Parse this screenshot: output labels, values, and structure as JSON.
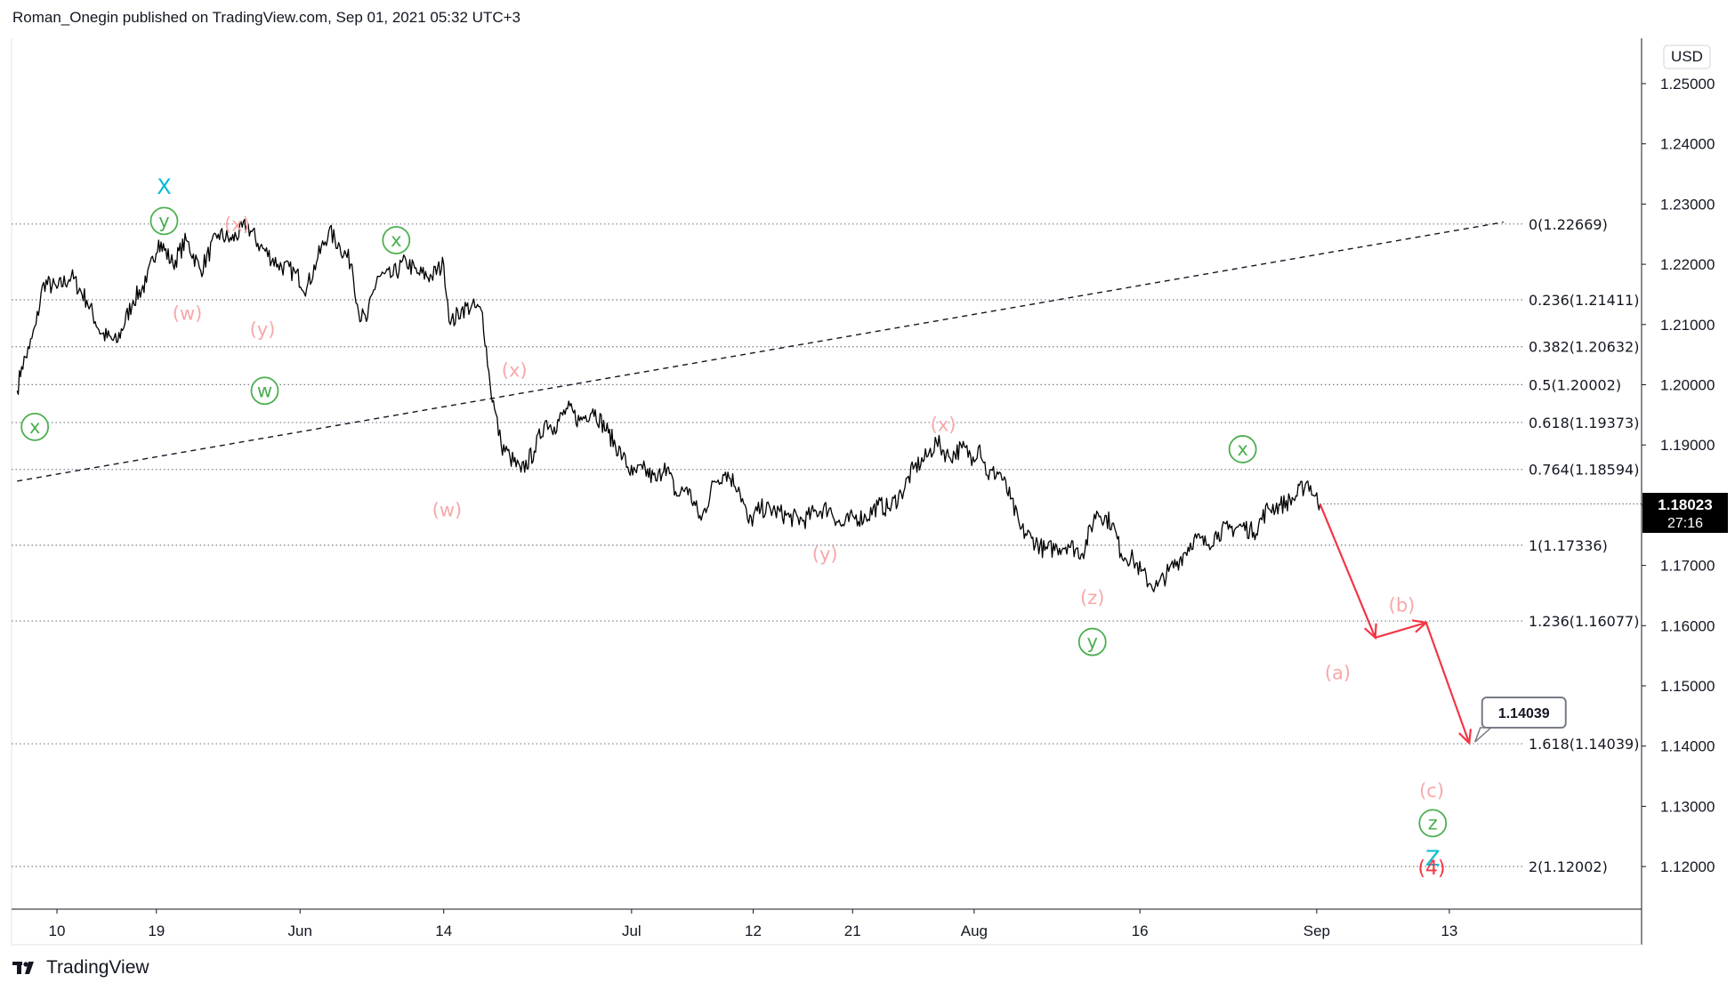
{
  "header": {
    "publisher": "Roman_Onegin published on TradingView.com, Sep 01, 2021 05:32 UTC+3"
  },
  "footer": {
    "brand": "TradingView",
    "logo_icon": "tradingview-logo-icon"
  },
  "chart_data": {
    "type": "line",
    "symbol_currency": "USD",
    "y_range": [
      1.1145,
      1.255
    ],
    "y_ticks": [
      "1.25000",
      "1.24000",
      "1.23000",
      "1.22000",
      "1.21000",
      "1.20000",
      "1.19000",
      "1.18000",
      "1.17000",
      "1.16000",
      "1.15000",
      "1.14000",
      "1.13000",
      "1.12000"
    ],
    "x_ticks": [
      {
        "label": "10",
        "day": 0
      },
      {
        "label": "19",
        "day": 9
      },
      {
        "label": "Jun",
        "day": 22
      },
      {
        "label": "14",
        "day": 35
      },
      {
        "label": "Jul",
        "day": 52
      },
      {
        "label": "12",
        "day": 63
      },
      {
        "label": "21",
        "day": 72
      },
      {
        "label": "Aug",
        "day": 83
      },
      {
        "label": "16",
        "day": 98
      },
      {
        "label": "Sep",
        "day": 114
      },
      {
        "label": "13",
        "day": 126
      }
    ],
    "last_price": "1.18023",
    "countdown": "27:16",
    "price_path": [
      {
        "day": -3.6,
        "price": 1.199
      },
      {
        "day": -3.2,
        "price": 1.203
      },
      {
        "day": -2.5,
        "price": 1.206
      },
      {
        "day": -1.9,
        "price": 1.21
      },
      {
        "day": -1.2,
        "price": 1.217
      },
      {
        "day": 0.0,
        "price": 1.216
      },
      {
        "day": 1.3,
        "price": 1.218
      },
      {
        "day": 2.7,
        "price": 1.214
      },
      {
        "day": 4.0,
        "price": 1.2085
      },
      {
        "day": 5.4,
        "price": 1.207
      },
      {
        "day": 6.9,
        "price": 1.214
      },
      {
        "day": 8.1,
        "price": 1.217
      },
      {
        "day": 9.2,
        "price": 1.224
      },
      {
        "day": 10.5,
        "price": 1.22
      },
      {
        "day": 11.7,
        "price": 1.224
      },
      {
        "day": 13.0,
        "price": 1.219
      },
      {
        "day": 14.6,
        "price": 1.225
      },
      {
        "day": 15.8,
        "price": 1.224
      },
      {
        "day": 17.2,
        "price": 1.2265
      },
      {
        "day": 18.4,
        "price": 1.223
      },
      {
        "day": 20.0,
        "price": 1.22
      },
      {
        "day": 21.6,
        "price": 1.2185
      },
      {
        "day": 22.6,
        "price": 1.216
      },
      {
        "day": 23.6,
        "price": 1.221
      },
      {
        "day": 24.6,
        "price": 1.2255
      },
      {
        "day": 25.6,
        "price": 1.223
      },
      {
        "day": 26.7,
        "price": 1.22
      },
      {
        "day": 27.3,
        "price": 1.212
      },
      {
        "day": 28.0,
        "price": 1.2105
      },
      {
        "day": 29.0,
        "price": 1.218
      },
      {
        "day": 30.3,
        "price": 1.218
      },
      {
        "day": 31.6,
        "price": 1.2205
      },
      {
        "day": 32.6,
        "price": 1.2185
      },
      {
        "day": 33.9,
        "price": 1.218
      },
      {
        "day": 35.0,
        "price": 1.22
      },
      {
        "day": 35.6,
        "price": 1.21
      },
      {
        "day": 36.6,
        "price": 1.2125
      },
      {
        "day": 37.5,
        "price": 1.213
      },
      {
        "day": 38.5,
        "price": 1.212
      },
      {
        "day": 39.2,
        "price": 1.2
      },
      {
        "day": 39.6,
        "price": 1.196
      },
      {
        "day": 40.2,
        "price": 1.19
      },
      {
        "day": 41.0,
        "price": 1.188
      },
      {
        "day": 42.0,
        "price": 1.1855
      },
      {
        "day": 43.2,
        "price": 1.189
      },
      {
        "day": 44.2,
        "price": 1.194
      },
      {
        "day": 45.0,
        "price": 1.193
      },
      {
        "day": 46.2,
        "price": 1.196
      },
      {
        "day": 47.3,
        "price": 1.194
      },
      {
        "day": 48.5,
        "price": 1.196
      },
      {
        "day": 49.9,
        "price": 1.192
      },
      {
        "day": 51.2,
        "price": 1.188
      },
      {
        "day": 52.1,
        "price": 1.185
      },
      {
        "day": 53.0,
        "price": 1.186
      },
      {
        "day": 54.3,
        "price": 1.184
      },
      {
        "day": 55.0,
        "price": 1.187
      },
      {
        "day": 56.1,
        "price": 1.1815
      },
      {
        "day": 57.0,
        "price": 1.183
      },
      {
        "day": 58.3,
        "price": 1.1775
      },
      {
        "day": 59.5,
        "price": 1.184
      },
      {
        "day": 60.5,
        "price": 1.1855
      },
      {
        "day": 61.7,
        "price": 1.183
      },
      {
        "day": 62.6,
        "price": 1.177
      },
      {
        "day": 63.7,
        "price": 1.1795
      },
      {
        "day": 65.0,
        "price": 1.179
      },
      {
        "day": 66.3,
        "price": 1.178
      },
      {
        "day": 67.6,
        "price": 1.1775
      },
      {
        "day": 68.7,
        "price": 1.179
      },
      {
        "day": 69.9,
        "price": 1.1795
      },
      {
        "day": 71.0,
        "price": 1.1765
      },
      {
        "day": 72.1,
        "price": 1.178
      },
      {
        "day": 73.2,
        "price": 1.178
      },
      {
        "day": 74.3,
        "price": 1.18
      },
      {
        "day": 75.3,
        "price": 1.1795
      },
      {
        "day": 76.4,
        "price": 1.182
      },
      {
        "day": 77.5,
        "price": 1.186
      },
      {
        "day": 78.7,
        "price": 1.188
      },
      {
        "day": 79.6,
        "price": 1.1905
      },
      {
        "day": 80.7,
        "price": 1.188
      },
      {
        "day": 81.9,
        "price": 1.1895
      },
      {
        "day": 82.9,
        "price": 1.188
      },
      {
        "day": 83.5,
        "price": 1.19
      },
      {
        "day": 84.2,
        "price": 1.185
      },
      {
        "day": 85.3,
        "price": 1.1855
      },
      {
        "day": 86.3,
        "price": 1.181
      },
      {
        "day": 87.2,
        "price": 1.176
      },
      {
        "day": 88.2,
        "price": 1.1745
      },
      {
        "day": 89.4,
        "price": 1.1725
      },
      {
        "day": 90.5,
        "price": 1.173
      },
      {
        "day": 91.5,
        "price": 1.1735
      },
      {
        "day": 92.8,
        "price": 1.172
      },
      {
        "day": 94.1,
        "price": 1.179
      },
      {
        "day": 95.5,
        "price": 1.177
      },
      {
        "day": 96.3,
        "price": 1.172
      },
      {
        "day": 97.4,
        "price": 1.171
      },
      {
        "day": 98.1,
        "price": 1.169
      },
      {
        "day": 98.9,
        "price": 1.167
      },
      {
        "day": 99.6,
        "price": 1.1665
      },
      {
        "day": 100.6,
        "price": 1.169
      },
      {
        "day": 101.6,
        "price": 1.171
      },
      {
        "day": 102.9,
        "price": 1.1745
      },
      {
        "day": 104.0,
        "price": 1.1735
      },
      {
        "day": 105.1,
        "price": 1.1755
      },
      {
        "day": 106.0,
        "price": 1.176
      },
      {
        "day": 107.3,
        "price": 1.1765
      },
      {
        "day": 108.3,
        "price": 1.1755
      },
      {
        "day": 109.6,
        "price": 1.1795
      },
      {
        "day": 110.7,
        "price": 1.18
      },
      {
        "day": 111.9,
        "price": 1.181
      },
      {
        "day": 113.2,
        "price": 1.184
      },
      {
        "day": 113.8,
        "price": 1.1815
      },
      {
        "day": 114.3,
        "price": 1.1802
      }
    ],
    "trendline": {
      "start": {
        "day": -3.6,
        "price": 1.184
      },
      "end": {
        "day": 130.9,
        "price": 1.227
      }
    },
    "fib_levels": [
      {
        "ratio": "0",
        "value": 1.22669,
        "label": "0(1.22669)"
      },
      {
        "ratio": "0.236",
        "value": 1.21411,
        "label": "0.236(1.21411)"
      },
      {
        "ratio": "0.382",
        "value": 1.20632,
        "label": "0.382(1.20632)"
      },
      {
        "ratio": "0.5",
        "value": 1.20002,
        "label": "0.5(1.20002)"
      },
      {
        "ratio": "0.618",
        "value": 1.19373,
        "label": "0.618(1.19373)"
      },
      {
        "ratio": "0.764",
        "value": 1.18594,
        "label": "0.764(1.18594)"
      },
      {
        "ratio": "1",
        "value": 1.17336,
        "label": "1(1.17336)"
      },
      {
        "ratio": "1.236",
        "value": 1.16077,
        "label": "1.236(1.16077)"
      },
      {
        "ratio": "1.618",
        "value": 1.14039,
        "label": "1.618(1.14039)"
      },
      {
        "ratio": "2",
        "value": 1.12002,
        "label": "2(1.12002)"
      }
    ],
    "projection_path": [
      {
        "day": 114.3,
        "price": 1.1802
      },
      {
        "day": 119.3,
        "price": 1.158
      },
      {
        "day": 123.9,
        "price": 1.1605
      },
      {
        "day": 127.8,
        "price": 1.1405
      }
    ],
    "target_callout": {
      "label": "1.14039",
      "day": 128.0,
      "price": 1.14039
    },
    "wave_labels": [
      {
        "text": "X",
        "day": 9.7,
        "price": 1.233,
        "style": "cyan"
      },
      {
        "text": "y",
        "day": 9.7,
        "price": 1.2272,
        "style": "green-circle"
      },
      {
        "text": "(x)",
        "day": 16.3,
        "price": 1.2267,
        "style": "pink"
      },
      {
        "text": "x",
        "day": 30.7,
        "price": 1.224,
        "style": "green-circle"
      },
      {
        "text": "(w)",
        "day": 11.8,
        "price": 1.212,
        "style": "pink"
      },
      {
        "text": "(y)",
        "day": 18.6,
        "price": 1.2093,
        "style": "pink"
      },
      {
        "text": "w",
        "day": 18.8,
        "price": 1.199,
        "style": "green-circle"
      },
      {
        "text": "x",
        "day": -2.0,
        "price": 1.193,
        "style": "green-circle"
      },
      {
        "text": "(x)",
        "day": 41.4,
        "price": 1.2025,
        "style": "pink"
      },
      {
        "text": "(w)",
        "day": 35.3,
        "price": 1.1793,
        "style": "pink"
      },
      {
        "text": "(x)",
        "day": 80.2,
        "price": 1.1935,
        "style": "pink"
      },
      {
        "text": "(y)",
        "day": 69.5,
        "price": 1.172,
        "style": "pink"
      },
      {
        "text": "x",
        "day": 107.3,
        "price": 1.1893,
        "style": "green-circle"
      },
      {
        "text": "(z)",
        "day": 93.7,
        "price": 1.1648,
        "style": "pink"
      },
      {
        "text": "y",
        "day": 93.7,
        "price": 1.1573,
        "style": "green-circle"
      },
      {
        "text": "(b)",
        "day": 121.7,
        "price": 1.1635,
        "style": "pink"
      },
      {
        "text": "(a)",
        "day": 115.9,
        "price": 1.1523,
        "style": "pink"
      },
      {
        "text": "(c)",
        "day": 124.4,
        "price": 1.1327,
        "style": "pink"
      },
      {
        "text": "z",
        "day": 124.5,
        "price": 1.1272,
        "style": "green-circle"
      },
      {
        "text": "Z",
        "day": 124.5,
        "price": 1.1215,
        "style": "cyan"
      },
      {
        "text": "(4)",
        "day": 124.4,
        "price": 1.12,
        "style": "red"
      }
    ],
    "colors": {
      "price": "#000000",
      "fib": "#787b86",
      "trendline": "#131722",
      "projection": "#f23645",
      "wave_pink": "#f7a8a8",
      "wave_green": "#4caf50",
      "wave_cyan": "#00bcd4",
      "wave_red": "#f23645"
    }
  }
}
